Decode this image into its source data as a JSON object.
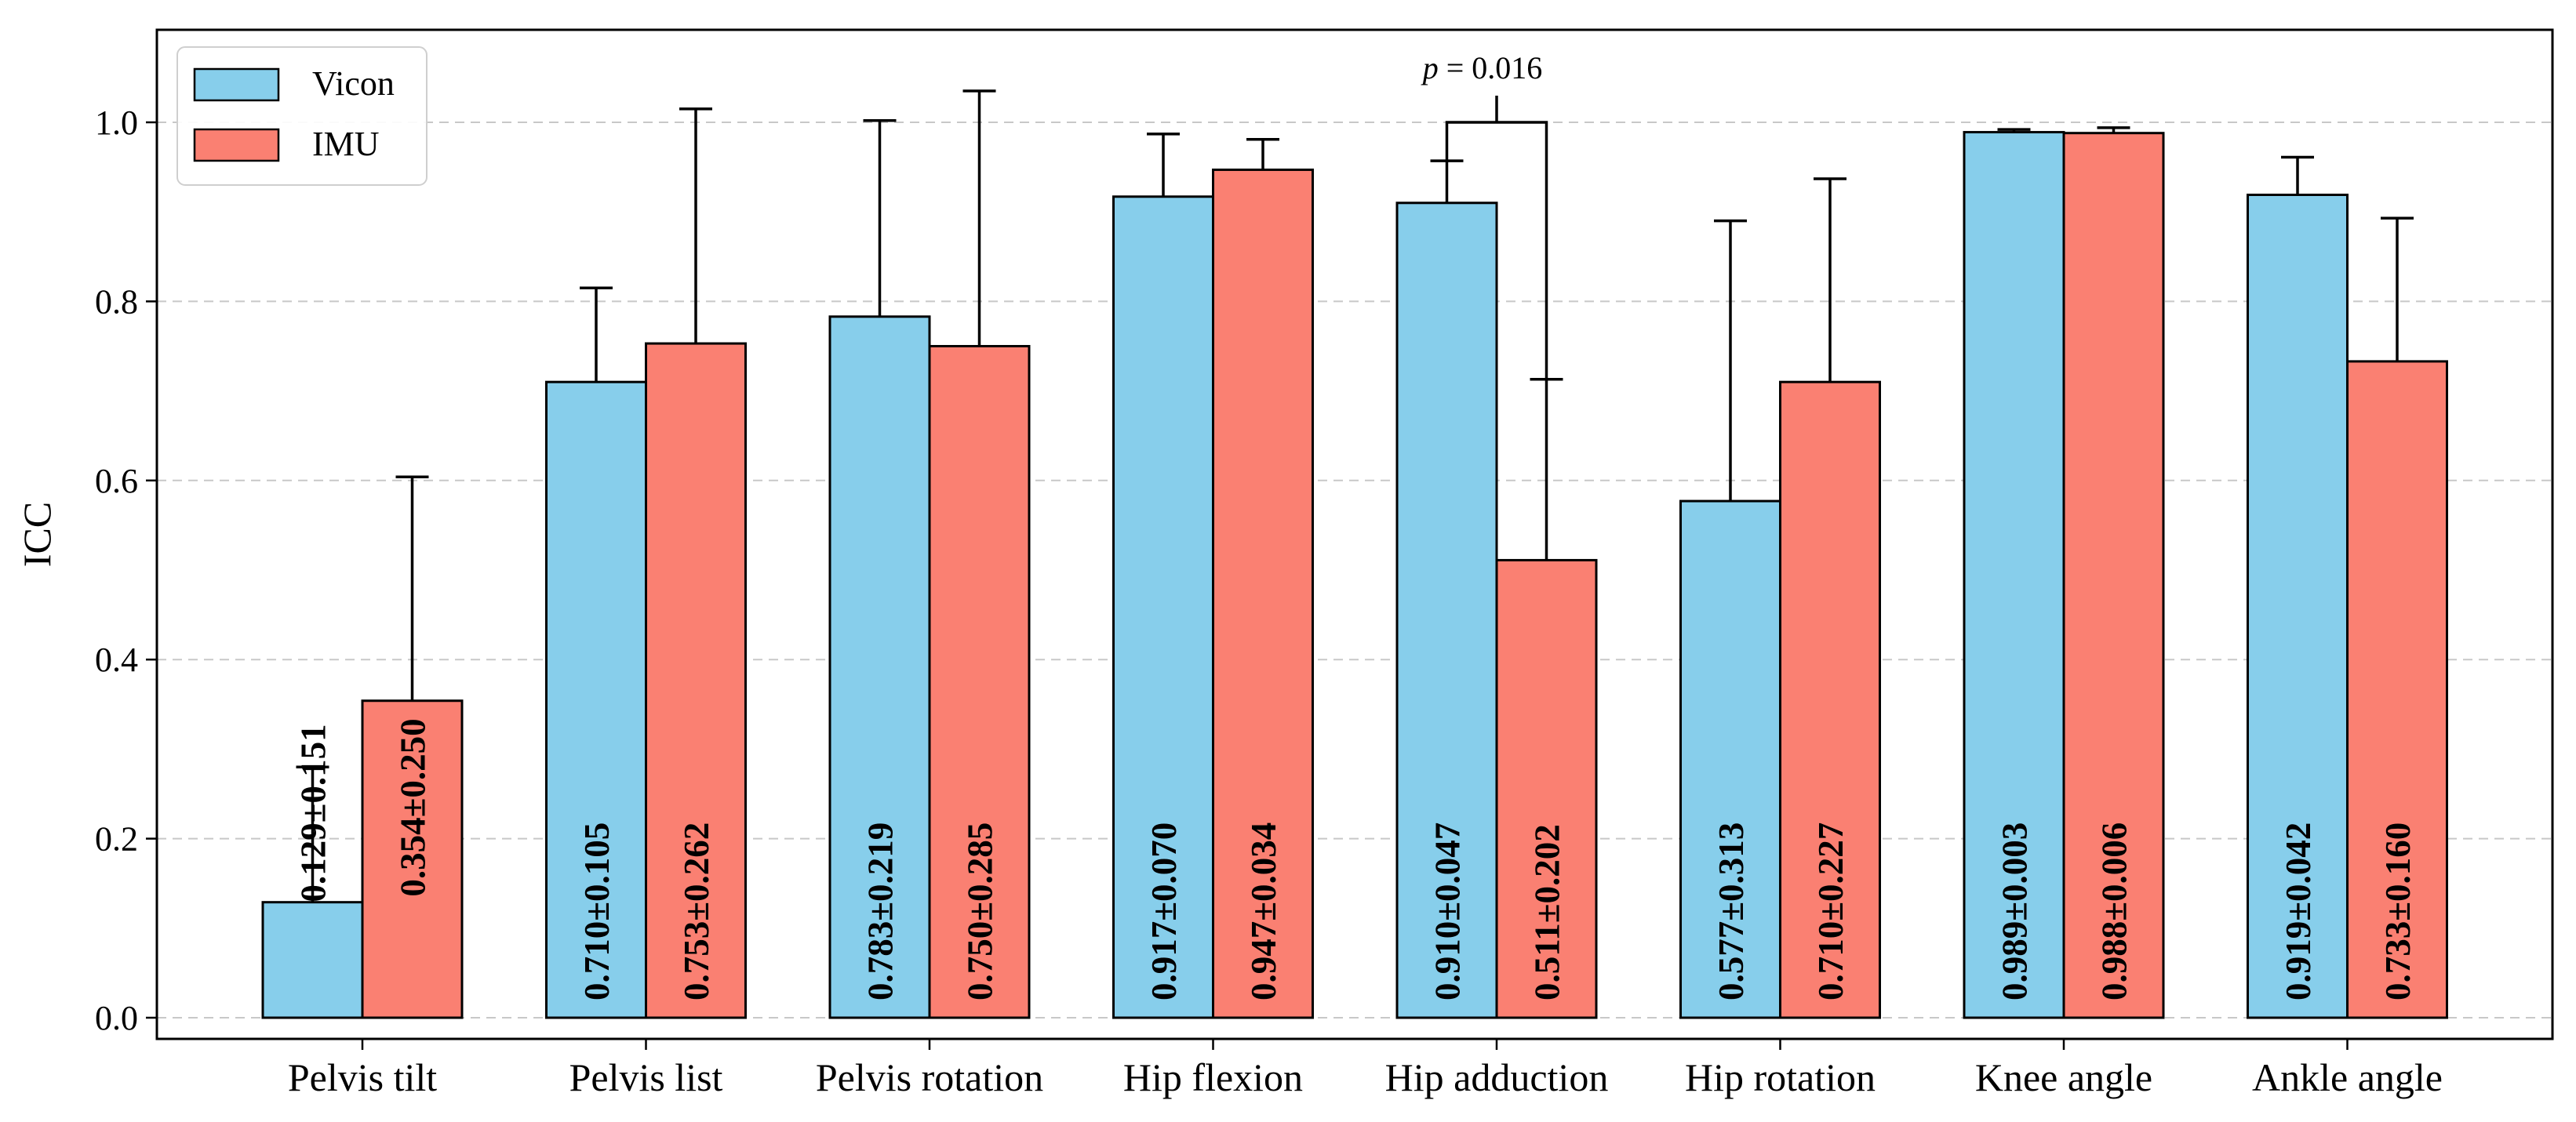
{
  "chart_data": {
    "type": "bar",
    "title": "",
    "xlabel": "",
    "ylabel": "ICC",
    "ylim": [
      0,
      1.1
    ],
    "yticks": [
      "0.0",
      "0.2",
      "0.4",
      "0.6",
      "0.8",
      "1.0"
    ],
    "grid": "horizontal dashed",
    "legend_position": "top-left",
    "categories": [
      "Pelvis tilt",
      "Pelvis list",
      "Pelvis rotation",
      "Hip flexion",
      "Hip adduction",
      "Hip rotation",
      "Knee angle",
      "Ankle angle"
    ],
    "series": [
      {
        "name": "Vicon",
        "color": "#87ceeb",
        "values": [
          0.129,
          0.71,
          0.783,
          0.917,
          0.91,
          0.577,
          0.989,
          0.919
        ],
        "errors": [
          0.151,
          0.105,
          0.219,
          0.07,
          0.047,
          0.313,
          0.003,
          0.042
        ],
        "labels": [
          "0.129±0.151",
          "0.710±0.105",
          "0.783±0.219",
          "0.917±0.070",
          "0.910±0.047",
          "0.577±0.313",
          "0.989±0.003",
          "0.919±0.042"
        ]
      },
      {
        "name": "IMU",
        "color": "#fa8072",
        "values": [
          0.354,
          0.753,
          0.75,
          0.947,
          0.511,
          0.71,
          0.988,
          0.733
        ],
        "errors": [
          0.25,
          0.262,
          0.285,
          0.034,
          0.202,
          0.227,
          0.006,
          0.16
        ],
        "labels": [
          "0.354±0.250",
          "0.753±0.262",
          "0.750±0.285",
          "0.947±0.034",
          "0.511±0.202",
          "0.710±0.227",
          "0.988±0.006",
          "0.733±0.160"
        ]
      }
    ],
    "annotations": [
      {
        "category": "Hip adduction",
        "text_italic": "p",
        "text_rest": " = 0.016",
        "y": 1.0
      }
    ]
  }
}
